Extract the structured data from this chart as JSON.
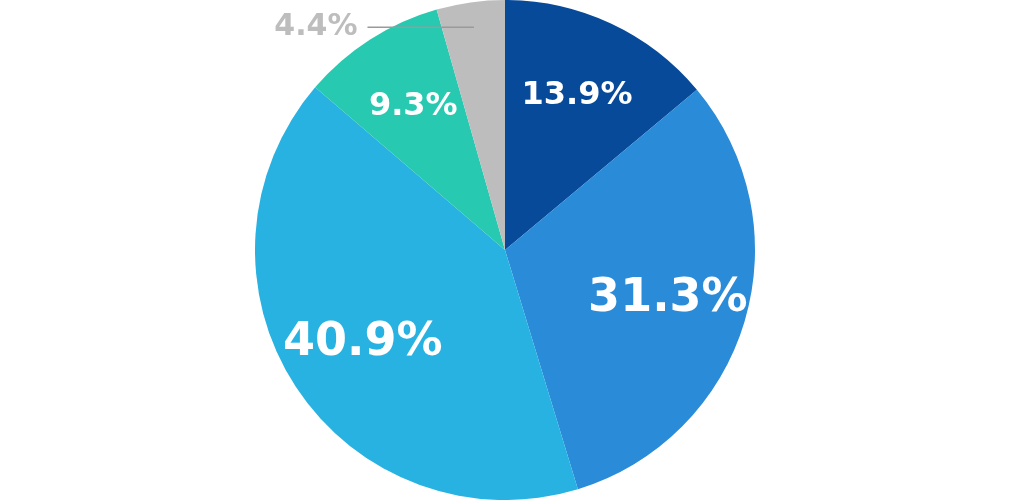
{
  "chart_data": {
    "type": "pie",
    "categories": [
      null,
      null,
      null,
      null,
      null
    ],
    "values": [
      13.9,
      31.3,
      40.9,
      9.3,
      4.4
    ],
    "colors": [
      "#074a9a",
      "#2a8bd8",
      "#27b2e2",
      "#27c9b0",
      "#bdbdbd"
    ],
    "value_labels": [
      "13.9%",
      "31.3%",
      "40.9%",
      "9.3%",
      "4.4%"
    ],
    "legend": false
  }
}
